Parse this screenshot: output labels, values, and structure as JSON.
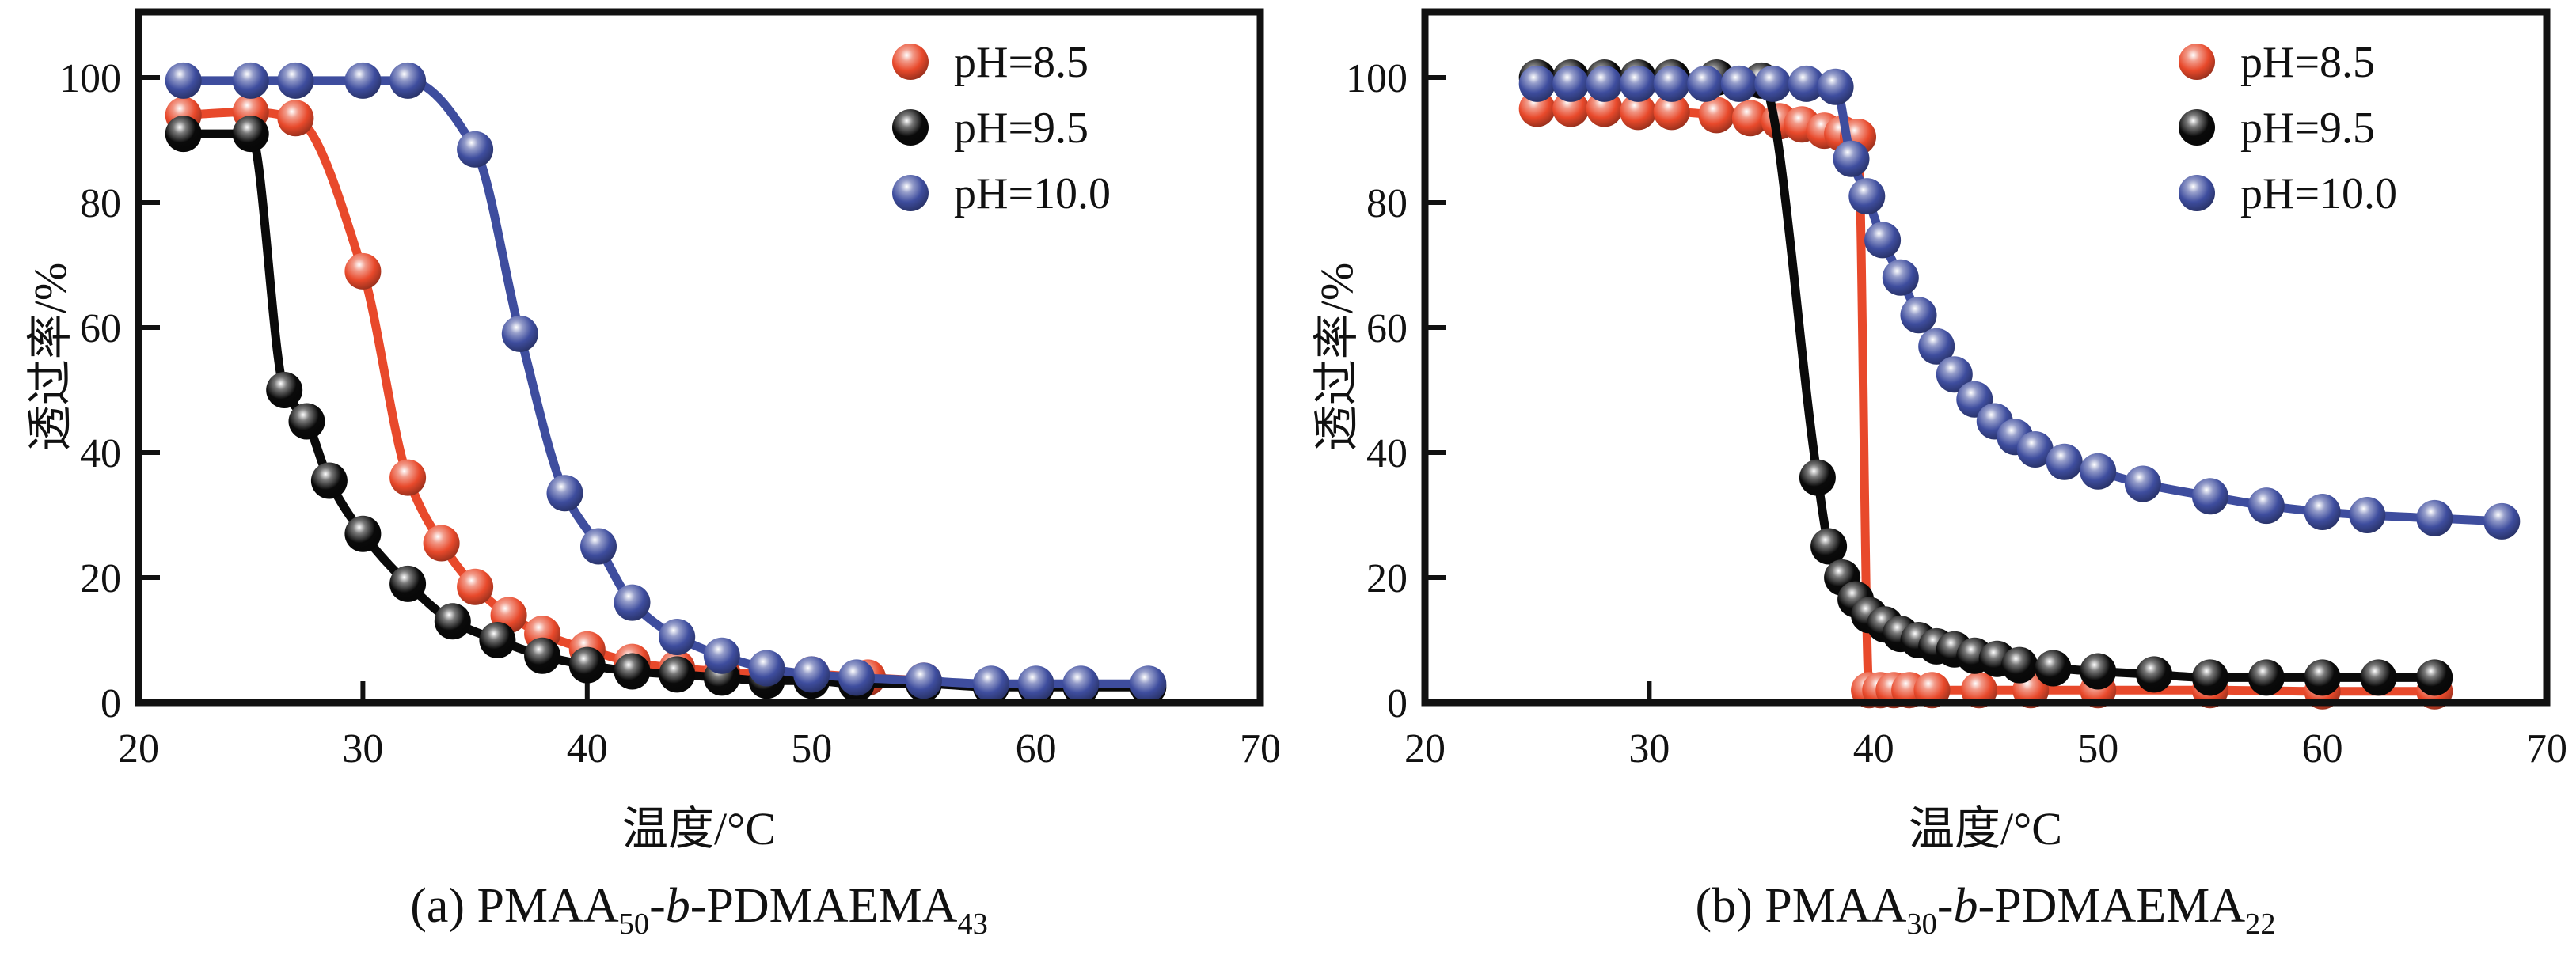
{
  "page": {
    "background": "#ffffff"
  },
  "legend": {
    "position": "upper-right-inside",
    "marker_style": "sphere"
  },
  "chart_data": [
    {
      "type": "line",
      "panel": "a",
      "title": "(a) PMAA50-b-PDMAEMA43",
      "caption_parts": [
        {
          "text": "(a) PMAA"
        },
        {
          "text": "50",
          "style": "sub"
        },
        {
          "text": "-"
        },
        {
          "text": "b",
          "style": "italic"
        },
        {
          "text": "-PDMAEMA"
        },
        {
          "text": "43",
          "style": "sub"
        }
      ],
      "xlabel": "温度/°C",
      "ylabel": "透过率/%",
      "xlim": [
        20,
        70
      ],
      "ylim": [
        0,
        110.5
      ],
      "xticks": [
        20,
        30,
        40,
        50,
        60,
        70
      ],
      "yticks": [
        0,
        20,
        40,
        60,
        80,
        100
      ],
      "grid": false,
      "legend_entries": [
        "pH=8.5",
        "pH=9.5",
        "pH=10.0"
      ],
      "series": [
        {
          "name": "pH=8.5",
          "color": "#e8492b",
          "x": [
            22,
            25,
            27,
            30,
            32,
            33.5,
            35,
            36.5,
            38,
            40,
            42,
            44,
            46,
            48,
            50,
            52.5,
            55
          ],
          "y": [
            94,
            94.5,
            93.5,
            69,
            36,
            25.5,
            18.5,
            14,
            11,
            8.5,
            6.5,
            5.5,
            5,
            4.5,
            4.5,
            4,
            3.5
          ]
        },
        {
          "name": "pH=9.5",
          "color": "#0a0a0a",
          "x": [
            22,
            25,
            26.5,
            27.5,
            28.5,
            30,
            32,
            34,
            36,
            38,
            40,
            42,
            44,
            46,
            48,
            50,
            52,
            55,
            58,
            60,
            62,
            65
          ],
          "y": [
            91,
            91,
            50,
            45,
            35.5,
            27,
            19,
            13,
            10,
            7.5,
            6,
            5,
            4.5,
            4,
            3.5,
            3.5,
            3,
            3,
            2.5,
            2.5,
            2.5,
            2.5
          ]
        },
        {
          "name": "pH=10.0",
          "color": "#3e4d9e",
          "x": [
            22,
            25,
            27,
            30,
            32,
            35,
            37,
            39,
            40.5,
            42,
            44,
            46,
            48,
            50,
            52,
            55,
            58,
            60,
            62,
            65
          ],
          "y": [
            99.5,
            99.5,
            99.5,
            99.5,
            99.5,
            88.5,
            59,
            33.5,
            25,
            16,
            10.5,
            7.5,
            5.5,
            4.5,
            4,
            3.5,
            3,
            3,
            3,
            3
          ]
        }
      ]
    },
    {
      "type": "line",
      "panel": "b",
      "title": "(b) PMAA30-b-PDMAEMA22",
      "caption_parts": [
        {
          "text": "(b) PMAA"
        },
        {
          "text": "30",
          "style": "sub"
        },
        {
          "text": "-"
        },
        {
          "text": "b",
          "style": "italic"
        },
        {
          "text": "-PDMAEMA"
        },
        {
          "text": "22",
          "style": "sub"
        }
      ],
      "xlabel": "温度/°C",
      "ylabel": "透过率/%",
      "xlim": [
        20,
        70
      ],
      "ylim": [
        0,
        110.5
      ],
      "xticks": [
        20,
        30,
        40,
        50,
        60,
        70
      ],
      "yticks": [
        0,
        20,
        40,
        60,
        80,
        100
      ],
      "grid": false,
      "legend_entries": [
        "pH=8.5",
        "pH=9.5",
        "pH=10.0"
      ],
      "series": [
        {
          "name": "pH=8.5",
          "color": "#e8492b",
          "x": [
            25,
            26.5,
            28,
            29.5,
            31,
            33,
            34.5,
            35.8,
            36.8,
            37.8,
            38.6,
            39.3,
            39.8,
            40.3,
            40.9,
            41.6,
            42.6,
            44.7,
            47,
            50,
            55,
            60,
            65
          ],
          "y": [
            95,
            95,
            95,
            94.5,
            94.5,
            94,
            93.5,
            93,
            92.5,
            91.5,
            91,
            90.5,
            2,
            2,
            2,
            2,
            2,
            2,
            2,
            2,
            2,
            1.8,
            1.8
          ]
        },
        {
          "name": "pH=9.5",
          "color": "#0a0a0a",
          "x": [
            25,
            26.5,
            28,
            29.5,
            31,
            33,
            35,
            37.5,
            38,
            38.6,
            39.2,
            39.8,
            40.5,
            41.2,
            42,
            42.8,
            43.6,
            44.5,
            45.5,
            46.5,
            48,
            50,
            52.5,
            55,
            57.5,
            60,
            62.5,
            65
          ],
          "y": [
            100,
            100,
            100,
            100,
            100,
            100,
            99.5,
            36,
            25,
            20,
            16.5,
            14,
            12.5,
            11,
            10,
            9,
            8.5,
            7.5,
            7,
            6,
            5.5,
            5,
            4.5,
            4,
            4,
            4,
            4,
            4
          ]
        },
        {
          "name": "pH=10.0",
          "color": "#3e4d9e",
          "x": [
            25,
            26.5,
            28,
            29.5,
            31,
            32.5,
            34,
            35.5,
            37,
            38.3,
            39,
            39.7,
            40.4,
            41.2,
            42,
            42.8,
            43.6,
            44.5,
            45.4,
            46.3,
            47.2,
            48.5,
            50,
            52,
            55,
            57.5,
            60,
            62,
            65,
            68
          ],
          "y": [
            99,
            99,
            99,
            99,
            99,
            99,
            99,
            99,
            99,
            98.5,
            87,
            81,
            74,
            68,
            62,
            57,
            52.5,
            48.5,
            45,
            42.5,
            40.5,
            38.5,
            37,
            35,
            33,
            31.5,
            30.5,
            30,
            29.5,
            29
          ]
        }
      ]
    }
  ]
}
